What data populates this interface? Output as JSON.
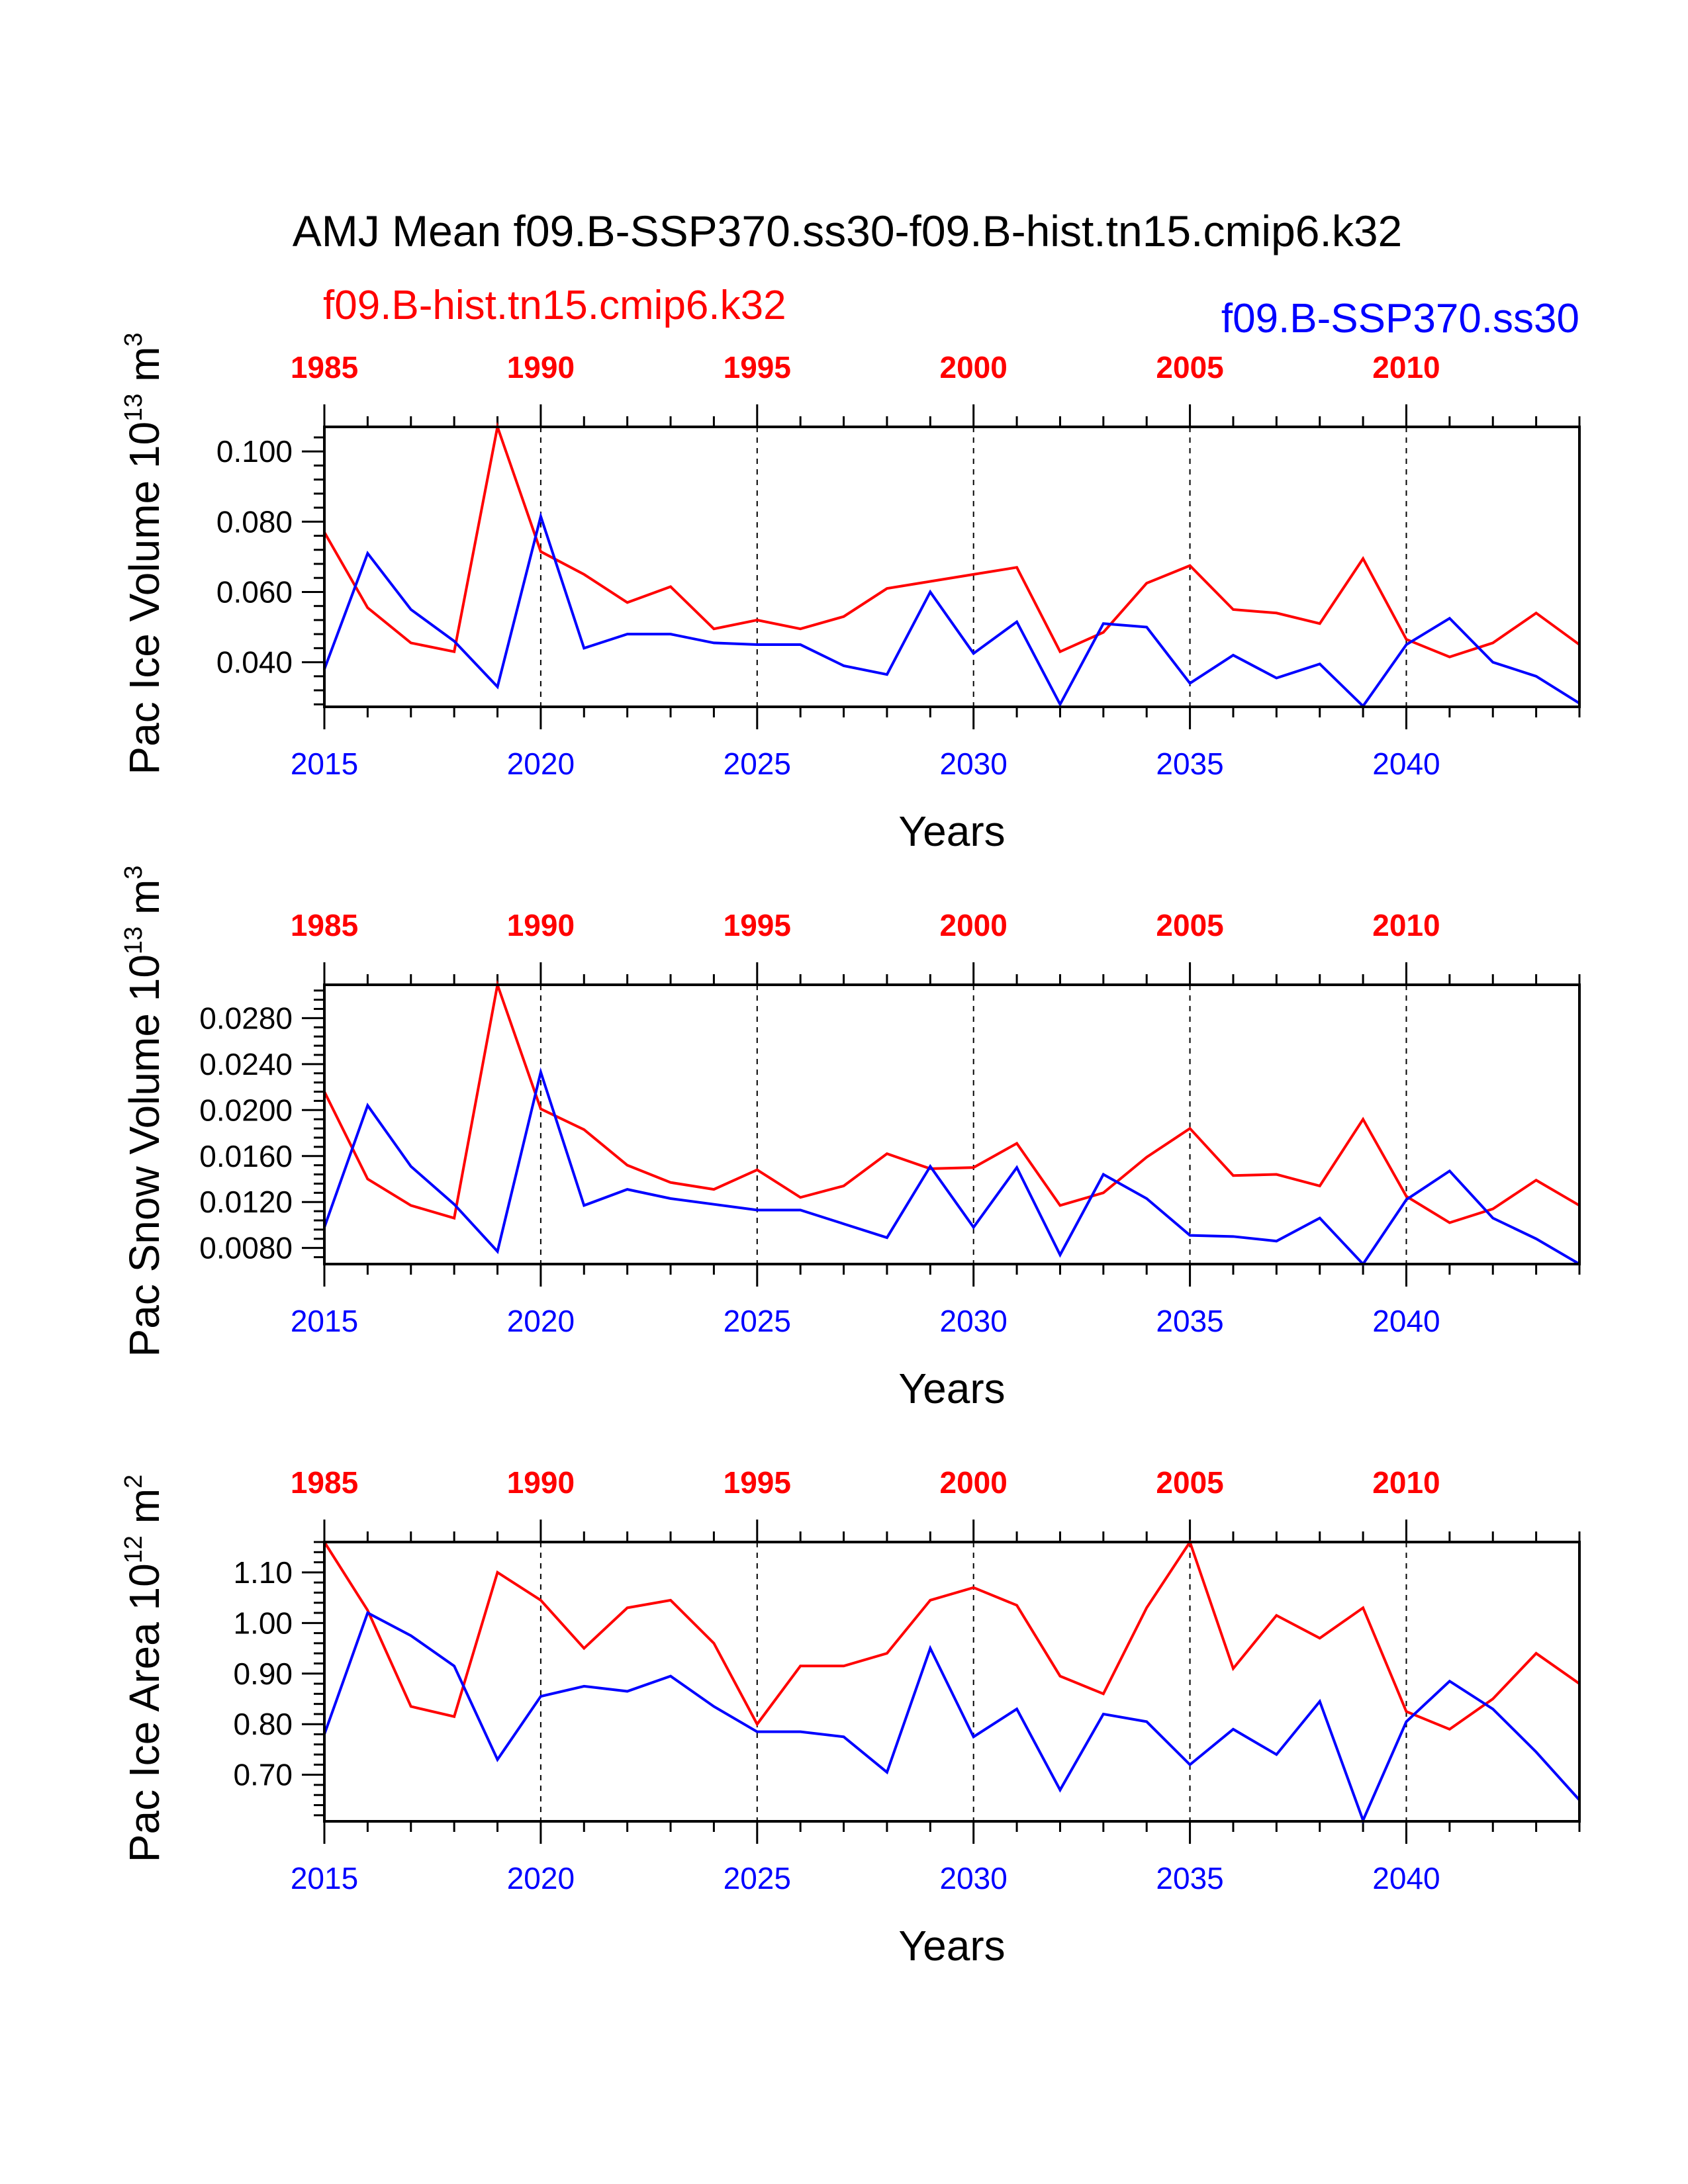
{
  "chart_data": {
    "type": "line",
    "title": "AMJ Mean f09.B-SSP370.ss30-f09.B-hist.tn15.cmip6.k32",
    "legend": [
      {
        "name": "f09.B-hist.tn15.cmip6.k32",
        "color": "#ff0000",
        "position": "top-left"
      },
      {
        "name": "f09.B-SSP370.ss30",
        "color": "#0000ff",
        "position": "top-right"
      }
    ],
    "x_bottom": {
      "label": "Years",
      "color": "#0000ff",
      "range": [
        2015,
        2044
      ],
      "ticks": [
        "2015",
        "2020",
        "2025",
        "2030",
        "2035",
        "2040"
      ],
      "tick_values": [
        2015,
        2020,
        2025,
        2030,
        2035,
        2040
      ]
    },
    "x_top": {
      "color": "#ff0000",
      "range": [
        1985,
        2014
      ],
      "ticks": [
        "1985",
        "1990",
        "1995",
        "2000",
        "2005",
        "2010"
      ],
      "tick_values": [
        1985,
        1990,
        1995,
        2000,
        2005,
        2010
      ]
    },
    "grid": "dashed vertical lines at major x ticks",
    "panels": [
      {
        "ylabel": "Pac Ice Volume 10",
        "ylabel_exp": "13",
        "ylabel_unit": " m",
        "ylabel_unit_exp": "3",
        "ylim": [
          0.0273,
          0.107
        ],
        "yticks": [
          "0.100",
          "0.080",
          "0.060",
          "0.040"
        ],
        "ytick_values": [
          0.1,
          0.08,
          0.06,
          0.04
        ],
        "series": [
          {
            "name": "f09.B-hist.tn15.cmip6.k32",
            "color": "#ff0000",
            "values": [
              0.077,
              0.0555,
              0.0455,
              0.043,
              0.107,
              0.0715,
              0.065,
              0.057,
              0.0615,
              0.0495,
              0.052,
              0.0495,
              0.053,
              0.061,
              0.063,
              0.065,
              0.067,
              0.043,
              0.0485,
              0.0625,
              0.0675,
              0.055,
              0.054,
              0.051,
              0.0695,
              0.0465,
              0.0415,
              0.0455,
              0.054,
              0.045
            ]
          },
          {
            "name": "f09.B-SSP370.ss30",
            "color": "#0000ff",
            "values": [
              0.038,
              0.071,
              0.055,
              0.046,
              0.033,
              0.0815,
              0.044,
              0.048,
              0.048,
              0.0455,
              0.045,
              0.045,
              0.039,
              0.0365,
              0.06,
              0.0425,
              0.0515,
              0.028,
              0.051,
              0.05,
              0.034,
              0.042,
              0.0355,
              0.0395,
              0.0275,
              0.045,
              0.0525,
              0.04,
              0.036,
              0.0283
            ]
          }
        ]
      },
      {
        "ylabel": "Pac Snow Volume 10",
        "ylabel_exp": "13",
        "ylabel_unit": " m",
        "ylabel_unit_exp": "3",
        "ylim": [
          0.0066,
          0.0309
        ],
        "yticks": [
          "0.0280",
          "0.0240",
          "0.0200",
          "0.0160",
          "0.0120",
          "0.0080"
        ],
        "ytick_values": [
          0.028,
          0.024,
          0.02,
          0.016,
          0.012,
          0.008
        ],
        "series": [
          {
            "name": "f09.B-hist.tn15.cmip6.k32",
            "color": "#ff0000",
            "values": [
              0.0216,
              0.014,
              0.0117,
              0.0106,
              0.0309,
              0.0201,
              0.0183,
              0.0152,
              0.0137,
              0.0131,
              0.0148,
              0.0124,
              0.0134,
              0.0162,
              0.0149,
              0.015,
              0.0171,
              0.0117,
              0.0128,
              0.0159,
              0.0184,
              0.0143,
              0.0144,
              0.0134,
              0.0192,
              0.0125,
              0.0102,
              0.0114,
              0.0139,
              0.0117
            ]
          },
          {
            "name": "f09.B-SSP370.ss30",
            "color": "#0000ff",
            "values": [
              0.0098,
              0.0204,
              0.0151,
              0.0118,
              0.0077,
              0.0233,
              0.0117,
              0.0131,
              0.0123,
              0.0118,
              0.0113,
              0.0113,
              0.0101,
              0.0089,
              0.0151,
              0.0098,
              0.015,
              0.0074,
              0.0144,
              0.0123,
              0.0091,
              0.009,
              0.0086,
              0.0106,
              0.0066,
              0.0122,
              0.0147,
              0.0106,
              0.0088,
              0.0066
            ]
          }
        ]
      },
      {
        "ylabel": "Pac Ice Area 10",
        "ylabel_exp": "12",
        "ylabel_unit": " m",
        "ylabel_unit_exp": "2",
        "ylim": [
          0.608,
          1.16
        ],
        "yticks": [
          "1.10",
          "1.00",
          "0.90",
          "0.80",
          "0.70"
        ],
        "ytick_values": [
          1.1,
          1.0,
          0.9,
          0.8,
          0.7
        ],
        "series": [
          {
            "name": "f09.B-hist.tn15.cmip6.k32",
            "color": "#ff0000",
            "values": [
              1.16,
              1.025,
              0.835,
              0.815,
              1.1,
              1.045,
              0.95,
              1.03,
              1.045,
              0.96,
              0.8,
              0.915,
              0.915,
              0.94,
              1.045,
              1.07,
              1.035,
              0.895,
              0.86,
              1.03,
              1.16,
              0.91,
              1.015,
              0.97,
              1.03,
              0.825,
              0.79,
              0.85,
              0.94,
              0.88
            ]
          },
          {
            "name": "f09.B-SSP370.ss30",
            "color": "#0000ff",
            "values": [
              0.78,
              1.02,
              0.975,
              0.915,
              0.73,
              0.855,
              0.875,
              0.865,
              0.895,
              0.835,
              0.785,
              0.785,
              0.775,
              0.705,
              0.95,
              0.775,
              0.83,
              0.67,
              0.82,
              0.805,
              0.72,
              0.79,
              0.74,
              0.845,
              0.61,
              0.805,
              0.885,
              0.83,
              0.745,
              0.65
            ]
          }
        ]
      }
    ]
  }
}
